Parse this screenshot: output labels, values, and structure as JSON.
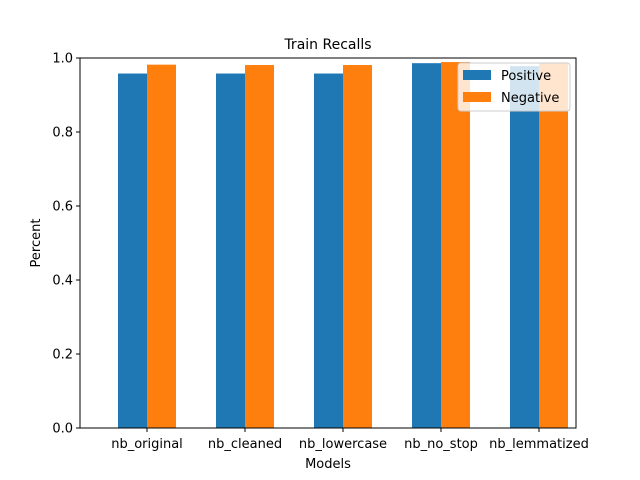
{
  "chart_data": {
    "type": "bar",
    "title": "Train Recalls",
    "xlabel": "Models",
    "ylabel": "Percent",
    "ylim": [
      0,
      1.0
    ],
    "yticks": [
      "0.0",
      "0.2",
      "0.4",
      "0.6",
      "0.8",
      "1.0"
    ],
    "ytick_values": [
      0,
      0.2,
      0.4,
      0.6,
      0.8,
      1.0
    ],
    "grid": false,
    "legend_position": "top-right",
    "categories": [
      "nb_original",
      "nb_cleaned",
      "nb_lowercase",
      "nb_no_stop",
      "nb_lemmatized"
    ],
    "series": [
      {
        "name": "Positive",
        "color": "#1f77b4",
        "values": [
          0.958,
          0.958,
          0.958,
          0.986,
          0.978
        ]
      },
      {
        "name": "Negative",
        "color": "#ff7f0e",
        "values": [
          0.982,
          0.981,
          0.981,
          0.989,
          0.985
        ]
      }
    ]
  }
}
